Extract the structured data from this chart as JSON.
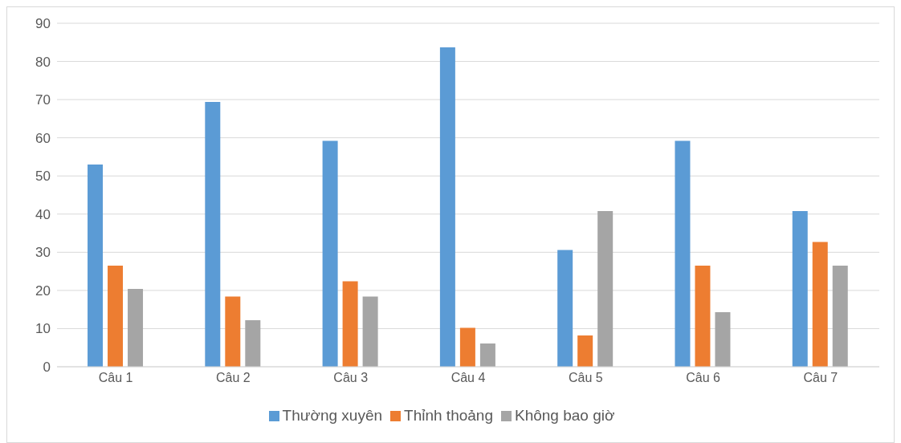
{
  "chart_data": {
    "type": "bar",
    "categories": [
      "Câu 1",
      "Câu 2",
      "Câu 3",
      "Câu 4",
      "Câu 5",
      "Câu 6",
      "Câu 7"
    ],
    "series": [
      {
        "name": "Thường xuyên",
        "color": "#5b9bd5",
        "values": [
          53,
          69.4,
          59.2,
          83.7,
          30.6,
          59.2,
          40.8
        ]
      },
      {
        "name": "Thỉnh thoảng",
        "color": "#ed7d31",
        "values": [
          26.5,
          18.4,
          22.4,
          10.2,
          8.2,
          26.5,
          32.7
        ]
      },
      {
        "name": "Không bao giờ",
        "color": "#a5a5a5",
        "values": [
          20.4,
          12.2,
          18.4,
          6.1,
          40.8,
          14.3,
          26.5
        ]
      }
    ],
    "ylim": [
      0,
      90
    ],
    "yticks": [
      0,
      10,
      20,
      30,
      40,
      50,
      60,
      70,
      80,
      90
    ],
    "grid": "y",
    "legend": "bottom"
  }
}
